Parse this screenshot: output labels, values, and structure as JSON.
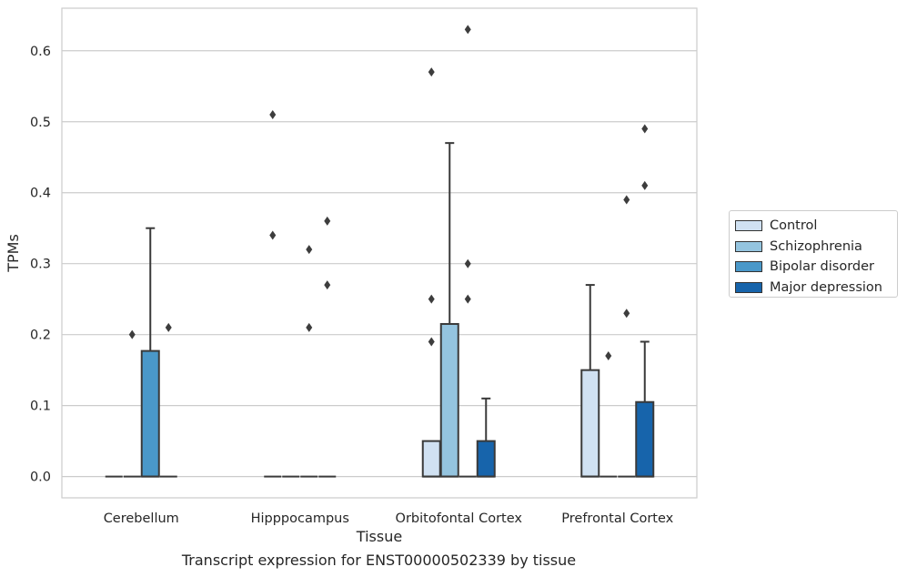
{
  "caption": "Transcript expression for ENST00000502339 by tissue",
  "chart_data": {
    "type": "box",
    "xlabel": "Tissue",
    "ylabel": "TPMs",
    "ylim": [
      -0.03,
      0.66
    ],
    "yticks": [
      0.0,
      0.1,
      0.2,
      0.3,
      0.4,
      0.5,
      0.6
    ],
    "ytick_labels": [
      "0.0",
      "0.1",
      "0.2",
      "0.3",
      "0.4",
      "0.5",
      "0.6"
    ],
    "grid": "horizontal",
    "legend_position": "right",
    "categories": [
      "Cerebellum",
      "Hipppocampus",
      "Orbitofontal Cortex",
      "Prefrontal Cortex"
    ],
    "series": [
      {
        "name": "Control",
        "color": "#d0e1f2"
      },
      {
        "name": "Schizophrenia",
        "color": "#94c4df"
      },
      {
        "name": "Bipolar disorder",
        "color": "#4a98c9"
      },
      {
        "name": "Major depression",
        "color": "#1764ab"
      }
    ],
    "boxes": [
      [
        {
          "q1": 0,
          "median": 0,
          "q3": 0,
          "whisker_low": 0,
          "whisker_high": 0,
          "outliers": []
        },
        {
          "q1": 0,
          "median": 0,
          "q3": 0,
          "whisker_low": 0,
          "whisker_high": 0,
          "outliers": [
            0.2
          ]
        },
        {
          "q1": 0,
          "median": 0,
          "q3": 0.177,
          "whisker_low": 0,
          "whisker_high": 0.35,
          "outliers": []
        },
        {
          "q1": 0,
          "median": 0,
          "q3": 0,
          "whisker_low": 0,
          "whisker_high": 0,
          "outliers": [
            0.21
          ]
        }
      ],
      [
        {
          "q1": 0,
          "median": 0,
          "q3": 0,
          "whisker_low": 0,
          "whisker_high": 0,
          "outliers": [
            0.34,
            0.51
          ]
        },
        {
          "q1": 0,
          "median": 0,
          "q3": 0,
          "whisker_low": 0,
          "whisker_high": 0,
          "outliers": []
        },
        {
          "q1": 0,
          "median": 0,
          "q3": 0,
          "whisker_low": 0,
          "whisker_high": 0,
          "outliers": [
            0.21,
            0.32
          ]
        },
        {
          "q1": 0,
          "median": 0,
          "q3": 0,
          "whisker_low": 0,
          "whisker_high": 0,
          "outliers": [
            0.27,
            0.36
          ]
        }
      ],
      [
        {
          "q1": 0,
          "median": 0,
          "q3": 0.05,
          "whisker_low": 0,
          "whisker_high": 0.05,
          "outliers": [
            0.19,
            0.25,
            0.57
          ]
        },
        {
          "q1": 0,
          "median": 0,
          "q3": 0.215,
          "whisker_low": 0,
          "whisker_high": 0.47,
          "outliers": []
        },
        {
          "q1": 0,
          "median": 0,
          "q3": 0,
          "whisker_low": 0,
          "whisker_high": 0,
          "outliers": [
            0.25,
            0.3,
            0.63
          ]
        },
        {
          "q1": 0,
          "median": 0,
          "q3": 0.05,
          "whisker_low": 0,
          "whisker_high": 0.11,
          "outliers": []
        }
      ],
      [
        {
          "q1": 0,
          "median": 0,
          "q3": 0.15,
          "whisker_low": 0,
          "whisker_high": 0.27,
          "outliers": []
        },
        {
          "q1": 0,
          "median": 0,
          "q3": 0,
          "whisker_low": 0,
          "whisker_high": 0,
          "outliers": [
            0.17
          ]
        },
        {
          "q1": 0,
          "median": 0,
          "q3": 0,
          "whisker_low": 0,
          "whisker_high": 0,
          "outliers": [
            0.23,
            0.39
          ]
        },
        {
          "q1": 0,
          "median": 0,
          "q3": 0.105,
          "whisker_low": 0,
          "whisker_high": 0.19,
          "outliers": [
            0.41,
            0.49
          ]
        }
      ]
    ]
  }
}
